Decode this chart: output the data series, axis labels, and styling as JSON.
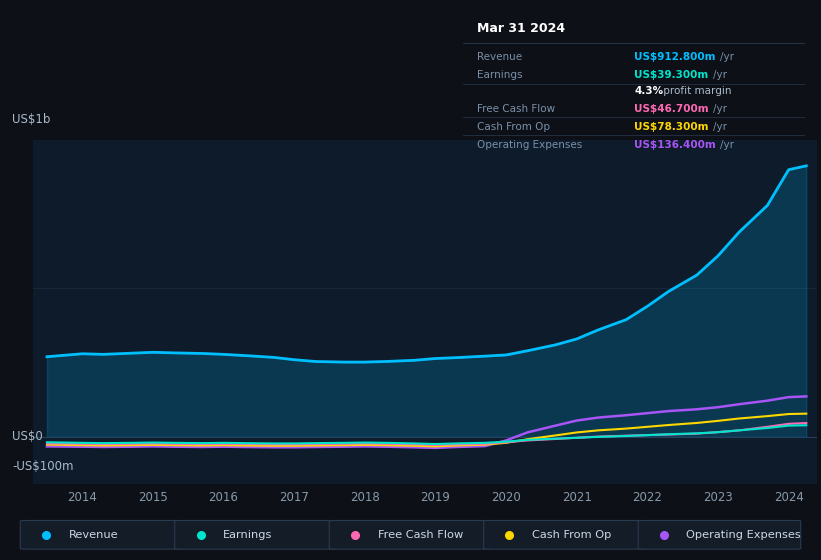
{
  "background_color": "#0d1117",
  "plot_bg_color": "#0d1b2a",
  "years": [
    2013.5,
    2014,
    2014.3,
    2014.7,
    2015,
    2015.3,
    2015.7,
    2016,
    2016.3,
    2016.7,
    2017,
    2017.3,
    2017.7,
    2018,
    2018.3,
    2018.7,
    2019,
    2019.3,
    2019.7,
    2020,
    2020.3,
    2020.7,
    2021,
    2021.3,
    2021.7,
    2022,
    2022.3,
    2022.7,
    2023,
    2023.3,
    2023.7,
    2024,
    2024.25
  ],
  "revenue": [
    270,
    280,
    278,
    282,
    285,
    283,
    281,
    278,
    274,
    268,
    260,
    254,
    252,
    252,
    254,
    258,
    264,
    267,
    272,
    276,
    290,
    310,
    330,
    360,
    395,
    440,
    490,
    545,
    610,
    690,
    780,
    900,
    913
  ],
  "earnings": [
    -18,
    -20,
    -21,
    -20,
    -19,
    -20,
    -21,
    -20,
    -21,
    -22,
    -22,
    -21,
    -20,
    -19,
    -20,
    -22,
    -24,
    -22,
    -20,
    -16,
    -10,
    -6,
    -3,
    0,
    3,
    6,
    9,
    12,
    16,
    22,
    30,
    38,
    39.3
  ],
  "free_cash_flow": [
    -22,
    -23,
    -24,
    -23,
    -22,
    -23,
    -24,
    -23,
    -24,
    -25,
    -25,
    -24,
    -23,
    -22,
    -23,
    -25,
    -27,
    -25,
    -23,
    -18,
    -12,
    -7,
    -3,
    1,
    4,
    6,
    8,
    11,
    16,
    22,
    34,
    44,
    46.7
  ],
  "cash_from_op": [
    -26,
    -28,
    -29,
    -28,
    -27,
    -28,
    -29,
    -28,
    -29,
    -30,
    -30,
    -29,
    -28,
    -27,
    -28,
    -30,
    -32,
    -29,
    -26,
    -20,
    -8,
    5,
    15,
    22,
    28,
    34,
    40,
    47,
    54,
    62,
    70,
    77,
    78.3
  ],
  "operating_expenses": [
    -32,
    -33,
    -34,
    -33,
    -32,
    -33,
    -34,
    -33,
    -34,
    -35,
    -35,
    -34,
    -33,
    -32,
    -33,
    -35,
    -37,
    -34,
    -31,
    -12,
    15,
    38,
    55,
    65,
    73,
    80,
    87,
    93,
    100,
    110,
    122,
    134,
    136.4
  ],
  "revenue_color": "#00bfff",
  "earnings_color": "#00e5cc",
  "free_cash_flow_color": "#ff69b4",
  "cash_from_op_color": "#ffd700",
  "operating_expenses_color": "#a855f7",
  "ylabel_top": "US$1b",
  "ylabel_zero": "US$0",
  "ylabel_neg": "-US$100m",
  "x_ticks": [
    2014,
    2015,
    2016,
    2017,
    2018,
    2019,
    2020,
    2021,
    2022,
    2023,
    2024
  ],
  "ylim_min": -160,
  "ylim_max": 1000,
  "tooltip_date": "Mar 31 2024",
  "tooltip_revenue": "US$912.800m",
  "tooltip_earnings": "US$39.300m",
  "tooltip_profit_margin": "4.3%",
  "tooltip_fcf": "US$46.700m",
  "tooltip_cashop": "US$78.300m",
  "tooltip_opex": "US$136.400m",
  "legend_labels": [
    "Revenue",
    "Earnings",
    "Free Cash Flow",
    "Cash From Op",
    "Operating Expenses"
  ],
  "legend_bg": "#131c27",
  "legend_border": "#2a3a50"
}
